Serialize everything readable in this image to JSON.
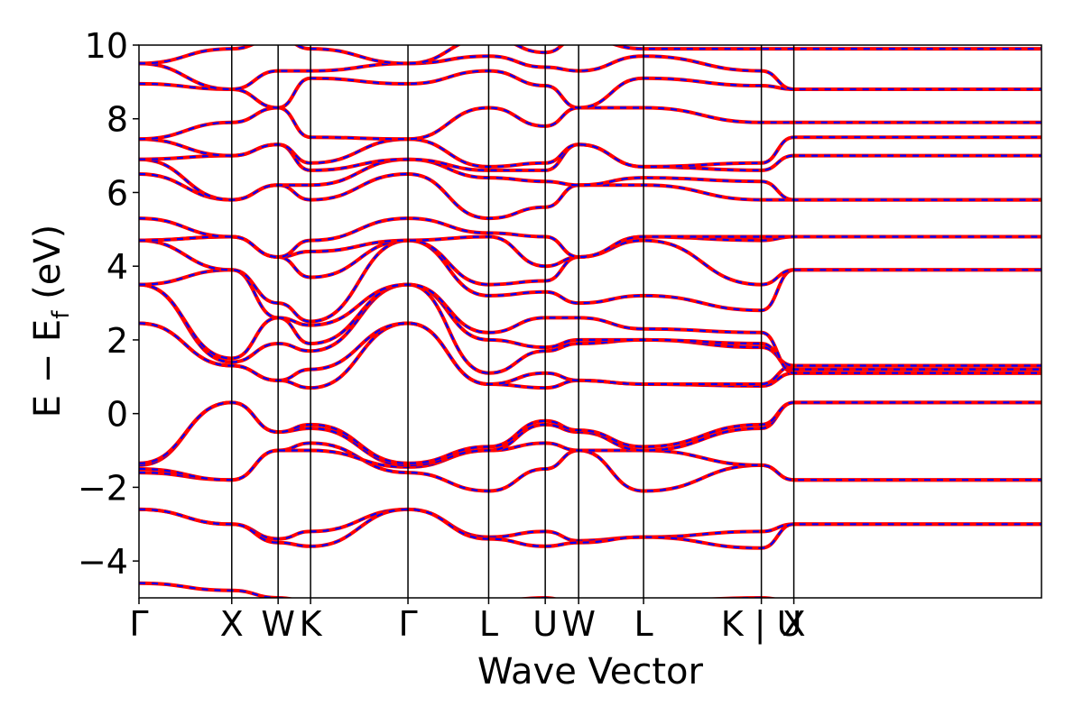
{
  "chart_data": {
    "type": "line",
    "xlabel": "Wave Vector",
    "ylabel_main": "E − E",
    "ylabel_sub": "f",
    "ylabel_unit": " (eV)",
    "ylim": [
      -5,
      10
    ],
    "yticks": [
      {
        "value": -4,
        "label": "−4"
      },
      {
        "value": -2,
        "label": "−2"
      },
      {
        "value": 0,
        "label": "0"
      },
      {
        "value": 2,
        "label": "2"
      },
      {
        "value": 4,
        "label": "4"
      },
      {
        "value": 6,
        "label": "6"
      },
      {
        "value": 8,
        "label": "8"
      },
      {
        "value": 10,
        "label": "10"
      }
    ],
    "xlim": [
      0,
      9.73
    ],
    "kpoints": [
      {
        "label": "Γ",
        "x": 0.0
      },
      {
        "label": "X",
        "x": 1.0
      },
      {
        "label": "W",
        "x": 1.5
      },
      {
        "label": "K",
        "x": 1.85
      },
      {
        "label": "Γ",
        "x": 2.9
      },
      {
        "label": "L",
        "x": 3.77
      },
      {
        "label": "U",
        "x": 4.38
      },
      {
        "label": "W",
        "x": 4.74
      },
      {
        "label": "L",
        "x": 5.44
      },
      {
        "label": "K | U",
        "x": 6.71
      },
      {
        "label": "X",
        "x": 7.06
      }
    ],
    "grid": false,
    "legend": "none",
    "colors": {
      "series_a": "#ff0000",
      "series_b": "#0000ff",
      "kline": "#000000"
    },
    "series": [
      {
        "values": [
          [
            -4.6,
            -4.8,
            -5.0,
            -5.1,
            -5.2,
            -5.1,
            -5.0,
            -5.2,
            -5.1,
            -5.0,
            -5.1
          ],
          [
            -2.6,
            -3.0,
            -3.4,
            -3.2,
            -2.6,
            -3.35,
            -3.2,
            -3.45,
            -3.35,
            -3.2,
            -3.0
          ],
          [
            -2.6,
            -3.0,
            -3.5,
            -3.6,
            -2.6,
            -3.4,
            -3.6,
            -3.5,
            -3.35,
            -3.65,
            -3.0
          ],
          [
            -1.6,
            -1.8,
            -1.0,
            -0.8,
            -1.6,
            -2.1,
            -1.5,
            -1.0,
            -2.1,
            -1.4,
            -1.8
          ],
          [
            -1.5,
            -1.8,
            -1.0,
            -1.0,
            -1.45,
            -1.0,
            -0.8,
            -1.0,
            -1.0,
            -1.4,
            -1.8
          ],
          [
            -1.4,
            0.3,
            -0.5,
            -0.4,
            -1.4,
            -1.0,
            -0.3,
            -0.5,
            -1.0,
            -0.4,
            0.3
          ],
          [
            -1.35,
            0.3,
            -0.5,
            -0.3,
            -1.35,
            -0.9,
            -0.2,
            -0.45,
            -0.9,
            -0.3,
            0.3
          ],
          [
            2.45,
            1.3,
            0.9,
            0.7,
            2.45,
            0.8,
            0.7,
            0.9,
            0.8,
            0.75,
            1.1
          ],
          [
            2.45,
            1.3,
            0.9,
            1.2,
            2.45,
            0.8,
            1.1,
            0.9,
            0.8,
            0.8,
            1.3
          ],
          [
            3.5,
            1.4,
            1.9,
            1.7,
            3.5,
            1.1,
            1.7,
            1.9,
            2.0,
            1.8,
            1.3
          ],
          [
            3.5,
            1.5,
            2.6,
            1.9,
            3.5,
            2.0,
            1.8,
            2.0,
            2.0,
            1.9,
            1.2
          ],
          [
            3.5,
            3.9,
            2.6,
            2.4,
            3.5,
            2.2,
            2.6,
            2.6,
            2.3,
            2.2,
            1.1
          ],
          [
            4.7,
            3.9,
            3.0,
            2.5,
            4.7,
            3.2,
            3.3,
            3.0,
            3.2,
            2.8,
            3.9
          ],
          [
            4.7,
            4.8,
            4.25,
            3.7,
            4.7,
            3.5,
            3.6,
            4.25,
            4.7,
            3.5,
            3.9
          ],
          [
            4.7,
            4.8,
            4.25,
            4.4,
            4.7,
            4.8,
            4.0,
            4.25,
            4.8,
            4.7,
            4.8
          ],
          [
            5.3,
            4.8,
            4.25,
            4.7,
            5.3,
            4.9,
            4.8,
            4.25,
            4.8,
            4.8,
            4.8
          ],
          [
            6.5,
            5.8,
            6.2,
            5.8,
            6.5,
            5.3,
            5.6,
            6.2,
            6.2,
            5.8,
            5.8
          ],
          [
            6.9,
            5.8,
            6.2,
            6.2,
            6.9,
            6.4,
            6.3,
            6.2,
            6.4,
            6.3,
            5.8
          ],
          [
            6.9,
            7.0,
            7.3,
            6.6,
            6.9,
            6.6,
            6.6,
            7.3,
            6.7,
            6.6,
            7.0
          ],
          [
            7.45,
            7.0,
            7.3,
            6.8,
            7.45,
            6.7,
            6.8,
            7.3,
            6.7,
            6.8,
            7.5
          ],
          [
            7.45,
            7.9,
            8.3,
            7.5,
            7.45,
            8.3,
            7.8,
            8.3,
            8.3,
            7.9,
            7.9
          ],
          [
            8.95,
            8.8,
            8.3,
            9.1,
            8.95,
            9.3,
            8.9,
            8.3,
            9.1,
            8.9,
            8.8
          ],
          [
            9.5,
            8.8,
            9.3,
            9.3,
            9.5,
            9.7,
            9.4,
            9.3,
            9.7,
            9.3,
            8.8
          ],
          [
            9.5,
            9.9,
            10.2,
            9.9,
            9.5,
            10.2,
            9.8,
            10.2,
            9.9,
            9.9,
            9.9
          ]
        ]
      }
    ]
  }
}
